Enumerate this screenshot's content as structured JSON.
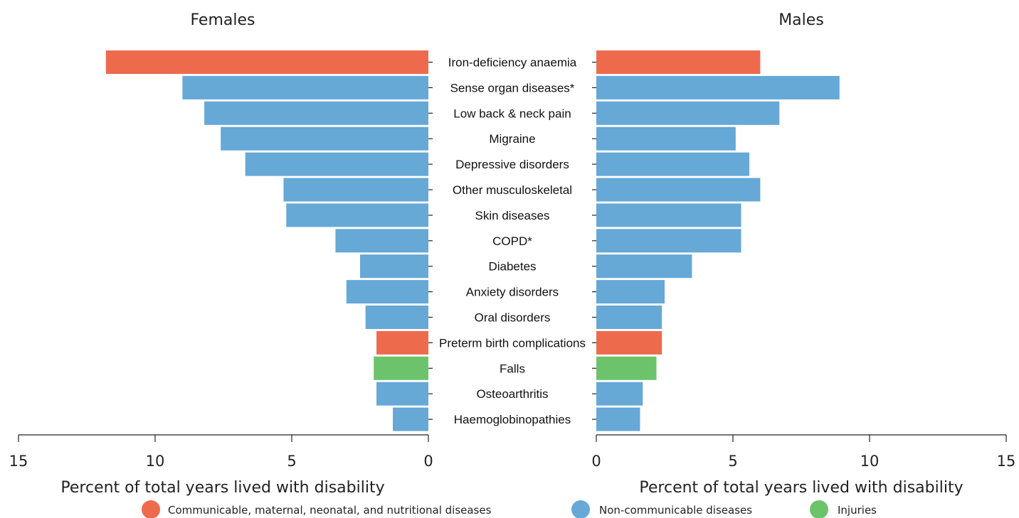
{
  "chart_data": {
    "type": "bar",
    "orientation": "horizontal",
    "layout": "back-to-back",
    "categories": [
      "Iron-deficiency anaemia",
      "Sense organ diseases*",
      "Low back & neck pain",
      "Migraine",
      "Depressive disorders",
      "Other musculoskeletal",
      "Skin diseases",
      "COPD*",
      "Diabetes",
      "Anxiety disorders",
      "Oral disorders",
      "Preterm birth complications",
      "Falls",
      "Osteoarthritis",
      "Haemoglobinopathies"
    ],
    "groups": [
      "Communicable, maternal, neonatal, and nutritional diseases",
      "Non-communicable diseases",
      "Non-communicable diseases",
      "Non-communicable diseases",
      "Non-communicable diseases",
      "Non-communicable diseases",
      "Non-communicable diseases",
      "Non-communicable diseases",
      "Non-communicable diseases",
      "Non-communicable diseases",
      "Non-communicable diseases",
      "Communicable, maternal, neonatal, and nutritional diseases",
      "Injuries",
      "Non-communicable diseases",
      "Non-communicable diseases"
    ],
    "series": [
      {
        "name": "Females",
        "values": [
          11.8,
          9.0,
          8.2,
          7.6,
          6.7,
          5.3,
          5.2,
          3.4,
          2.5,
          3.0,
          2.3,
          1.9,
          2.0,
          1.9,
          1.3
        ]
      },
      {
        "name": "Males",
        "values": [
          6.0,
          8.9,
          6.7,
          5.1,
          5.6,
          6.0,
          5.3,
          5.3,
          3.5,
          2.5,
          2.4,
          2.4,
          2.2,
          1.7,
          1.6
        ]
      }
    ],
    "xlim": [
      0,
      15
    ],
    "ticks": [
      0,
      5,
      10,
      15
    ],
    "xlabel": "Percent of total years lived with disability",
    "legend": [
      {
        "label": "Communicable, maternal, neonatal, and nutritional diseases",
        "color": "#EE6A4D"
      },
      {
        "label": "Non-communicable diseases",
        "color": "#66A8D6"
      },
      {
        "label": "Injuries",
        "color": "#6DC36B"
      }
    ],
    "legend_position": "bottom"
  }
}
